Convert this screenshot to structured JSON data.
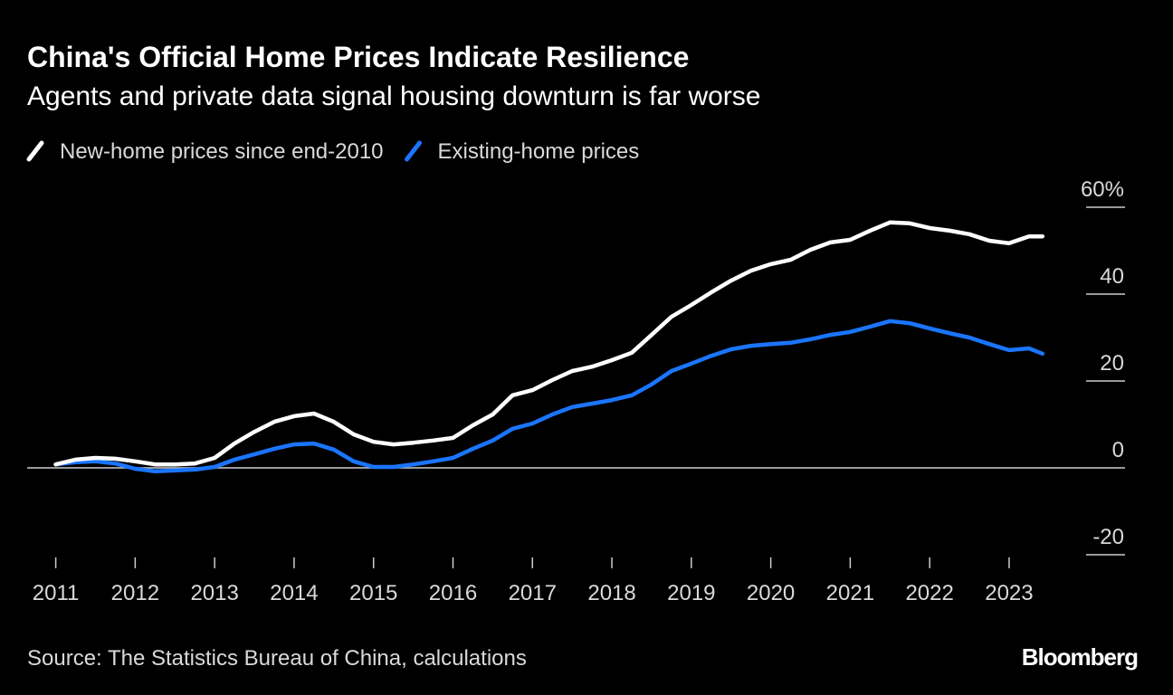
{
  "chart_data": {
    "type": "line",
    "title": "China's Official Home Prices Indicate Resilience",
    "subtitle": "Agents and private data signal housing downturn is far worse",
    "source": "Source: The Statistics Bureau of China, calculations",
    "brand": "Bloomberg",
    "x": [
      2011,
      2011.25,
      2011.5,
      2011.75,
      2012,
      2012.25,
      2012.5,
      2012.75,
      2013,
      2013.25,
      2013.5,
      2013.75,
      2014,
      2014.25,
      2014.5,
      2014.75,
      2015,
      2015.25,
      2015.5,
      2015.75,
      2016,
      2016.25,
      2016.5,
      2016.75,
      2017,
      2017.25,
      2017.5,
      2017.75,
      2018,
      2018.25,
      2018.5,
      2018.75,
      2019,
      2019.25,
      2019.5,
      2019.75,
      2020,
      2020.25,
      2020.5,
      2020.75,
      2021,
      2021.25,
      2021.5,
      2021.75,
      2022,
      2022.25,
      2022.5,
      2022.75,
      2023,
      2023.25,
      2023.42
    ],
    "series": [
      {
        "name": "New-home prices since end-2010",
        "color": "#ffffff",
        "values": [
          0.8,
          1.9,
          2.3,
          2.1,
          1.5,
          0.8,
          0.8,
          1.0,
          2.3,
          5.6,
          8.3,
          10.6,
          11.9,
          12.5,
          10.6,
          7.7,
          6.0,
          5.4,
          5.8,
          6.3,
          6.9,
          9.8,
          12.3,
          16.7,
          17.9,
          20.2,
          22.3,
          23.3,
          24.8,
          26.5,
          30.6,
          34.8,
          37.5,
          40.4,
          43.1,
          45.4,
          46.9,
          47.9,
          50.2,
          51.9,
          52.5,
          54.6,
          56.5,
          56.3,
          55.2,
          54.6,
          53.8,
          52.3,
          51.7,
          53.3,
          53.3
        ]
      },
      {
        "name": "Existing-home prices",
        "color": "#1a75ff",
        "values": [
          0.8,
          1.3,
          1.5,
          1.0,
          -0.2,
          -0.8,
          -0.6,
          -0.4,
          0.2,
          1.9,
          3.1,
          4.4,
          5.4,
          5.6,
          4.2,
          1.5,
          0.2,
          0.2,
          0.8,
          1.5,
          2.3,
          4.4,
          6.3,
          9.0,
          10.2,
          12.3,
          14.0,
          14.8,
          15.6,
          16.7,
          19.2,
          22.3,
          24.0,
          25.8,
          27.3,
          28.1,
          28.5,
          28.8,
          29.6,
          30.6,
          31.3,
          32.5,
          33.8,
          33.3,
          32.1,
          31.0,
          30.0,
          28.5,
          27.1,
          27.5,
          26.3
        ]
      }
    ],
    "xlim": [
      2010.64,
      2024.14
    ],
    "xticks": [
      2011,
      2012,
      2013,
      2014,
      2015,
      2016,
      2017,
      2018,
      2019,
      2020,
      2021,
      2022,
      2023
    ],
    "ylim": [
      -20,
      60
    ],
    "yticks": [
      -20,
      0,
      20,
      40,
      {
        "value": 60,
        "label": "60%"
      }
    ],
    "legend": "top-left"
  }
}
